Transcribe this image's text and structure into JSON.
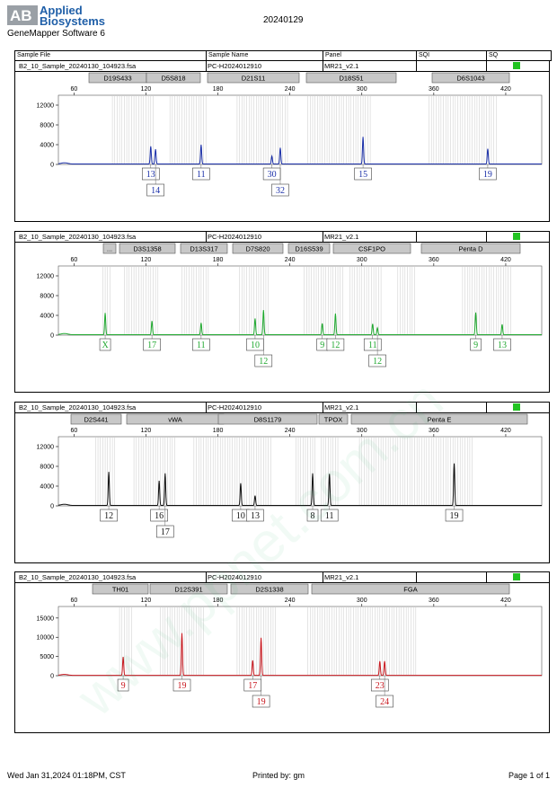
{
  "header": {
    "logo_line1": "Applied",
    "logo_line2": "Biosystems",
    "software": "GeneMapper Software 6",
    "report_date": "20240129",
    "columns": [
      "Sample File",
      "Sample Name",
      "Panel",
      "SQI",
      "SQ"
    ]
  },
  "footer": {
    "date": "Wed Jan 31,2024 01:18PM, CST",
    "printed_by": "Printed by: gm",
    "page": "Page 1 of 1"
  },
  "watermark": "www.ppnet.com.cn",
  "chart_data": [
    {
      "type": "line",
      "color": "#1a2fa8",
      "sample_file": "B2_10_Sample_20240130_104923.fsa",
      "sample_name": "PC-H2024012910",
      "panel": "MR21_v2.1",
      "xlim": [
        47,
        450
      ],
      "x_ticks": [
        60,
        120,
        180,
        240,
        300,
        360,
        420
      ],
      "ylim": [
        0,
        14000
      ],
      "y_ticks": [
        0,
        4000,
        8000,
        12000
      ],
      "markers": [
        "D19S433",
        "D5S818",
        "D21S11",
        "D18S51",
        "D6S1043"
      ],
      "peaks": [
        {
          "x": 124,
          "y": 3600
        },
        {
          "x": 128,
          "y": 3000
        },
        {
          "x": 166,
          "y": 3900
        },
        {
          "x": 225,
          "y": 1600
        },
        {
          "x": 232,
          "y": 3300
        },
        {
          "x": 301,
          "y": 5500
        },
        {
          "x": 405,
          "y": 3100
        }
      ],
      "alleles": [
        {
          "x": 124,
          "label": "13",
          "row": 0
        },
        {
          "x": 128,
          "label": "14",
          "row": 1
        },
        {
          "x": 166,
          "label": "11",
          "row": 0
        },
        {
          "x": 225,
          "label": "30",
          "row": 0
        },
        {
          "x": 232,
          "label": "32",
          "row": 1
        },
        {
          "x": 301,
          "label": "15",
          "row": 0
        },
        {
          "x": 405,
          "label": "19",
          "row": 0
        }
      ]
    },
    {
      "type": "line",
      "color": "#1fa82f",
      "sample_file": "B2_10_Sample_20240130_104923.fsa",
      "sample_name": "PC-H2024012910",
      "panel": "MR21_v2.1",
      "xlim": [
        47,
        450
      ],
      "x_ticks": [
        60,
        120,
        180,
        240,
        300,
        360,
        420
      ],
      "ylim": [
        0,
        14000
      ],
      "y_ticks": [
        0,
        4000,
        8000,
        12000
      ],
      "markers": [
        "...",
        "D3S1358",
        "D13S317",
        "D7S820",
        "D16S539",
        "CSF1PO",
        "Penta D"
      ],
      "peaks": [
        {
          "x": 86,
          "y": 4400
        },
        {
          "x": 125,
          "y": 2800
        },
        {
          "x": 166,
          "y": 2400
        },
        {
          "x": 211,
          "y": 3300
        },
        {
          "x": 218,
          "y": 5000
        },
        {
          "x": 267,
          "y": 2300
        },
        {
          "x": 278,
          "y": 4300
        },
        {
          "x": 309,
          "y": 2200
        },
        {
          "x": 313,
          "y": 1400
        },
        {
          "x": 395,
          "y": 4500
        },
        {
          "x": 417,
          "y": 2100
        }
      ],
      "alleles": [
        {
          "x": 86,
          "label": "X",
          "row": 0
        },
        {
          "x": 125,
          "label": "17",
          "row": 0
        },
        {
          "x": 166,
          "label": "11",
          "row": 0
        },
        {
          "x": 211,
          "label": "10",
          "row": 0
        },
        {
          "x": 218,
          "label": "12",
          "row": 1
        },
        {
          "x": 267,
          "label": "9",
          "row": 0
        },
        {
          "x": 278,
          "label": "12",
          "row": 0
        },
        {
          "x": 309,
          "label": "11",
          "row": 0
        },
        {
          "x": 313,
          "label": "12",
          "row": 1
        },
        {
          "x": 395,
          "label": "9",
          "row": 0
        },
        {
          "x": 417,
          "label": "13",
          "row": 0
        }
      ]
    },
    {
      "type": "line",
      "color": "#111111",
      "sample_file": "B2_10_Sample_20240130_104923.fsa",
      "sample_name": "PC-H2024012910",
      "panel": "MR21_v2.1",
      "xlim": [
        47,
        450
      ],
      "x_ticks": [
        60,
        120,
        180,
        240,
        300,
        360,
        420
      ],
      "ylim": [
        0,
        14000
      ],
      "y_ticks": [
        0,
        4000,
        8000,
        12000
      ],
      "markers": [
        "D2S441",
        "vWA",
        "D8S1179",
        "TPOX",
        "Penta E"
      ],
      "peaks": [
        {
          "x": 89,
          "y": 6800
        },
        {
          "x": 131,
          "y": 5000
        },
        {
          "x": 136,
          "y": 6500
        },
        {
          "x": 199,
          "y": 4500
        },
        {
          "x": 211,
          "y": 2000
        },
        {
          "x": 259,
          "y": 6500
        },
        {
          "x": 273,
          "y": 6400
        },
        {
          "x": 377,
          "y": 8500
        }
      ],
      "alleles": [
        {
          "x": 89,
          "label": "12",
          "row": 0
        },
        {
          "x": 131,
          "label": "16",
          "row": 0
        },
        {
          "x": 136,
          "label": "17",
          "row": 1
        },
        {
          "x": 199,
          "label": "10",
          "row": 0
        },
        {
          "x": 211,
          "label": "13",
          "row": 0
        },
        {
          "x": 259,
          "label": "8",
          "row": 0
        },
        {
          "x": 273,
          "label": "11",
          "row": 0
        },
        {
          "x": 377,
          "label": "19",
          "row": 0
        }
      ]
    },
    {
      "type": "line",
      "color": "#c8171e",
      "sample_file": "B2_10_Sample_20240130_104923.fsa",
      "sample_name": "PC-H2024012910",
      "panel": "MR21_v2.1",
      "xlim": [
        47,
        450
      ],
      "x_ticks": [
        60,
        120,
        180,
        240,
        300,
        360,
        420
      ],
      "ylim": [
        0,
        18000
      ],
      "y_ticks": [
        0,
        5000,
        10000,
        15000
      ],
      "markers": [
        "TH01",
        "D12S391",
        "D2S1338",
        "FGA"
      ],
      "peaks": [
        {
          "x": 101,
          "y": 4800
        },
        {
          "x": 150,
          "y": 11000
        },
        {
          "x": 209,
          "y": 3900
        },
        {
          "x": 216,
          "y": 9800
        },
        {
          "x": 315,
          "y": 3700
        },
        {
          "x": 319,
          "y": 3700
        }
      ],
      "alleles": [
        {
          "x": 101,
          "label": "9",
          "row": 0
        },
        {
          "x": 150,
          "label": "19",
          "row": 0
        },
        {
          "x": 209,
          "label": "17",
          "row": 0
        },
        {
          "x": 216,
          "label": "19",
          "row": 1
        },
        {
          "x": 315,
          "label": "23",
          "row": 0
        },
        {
          "x": 319,
          "label": "24",
          "row": 1
        }
      ]
    }
  ]
}
